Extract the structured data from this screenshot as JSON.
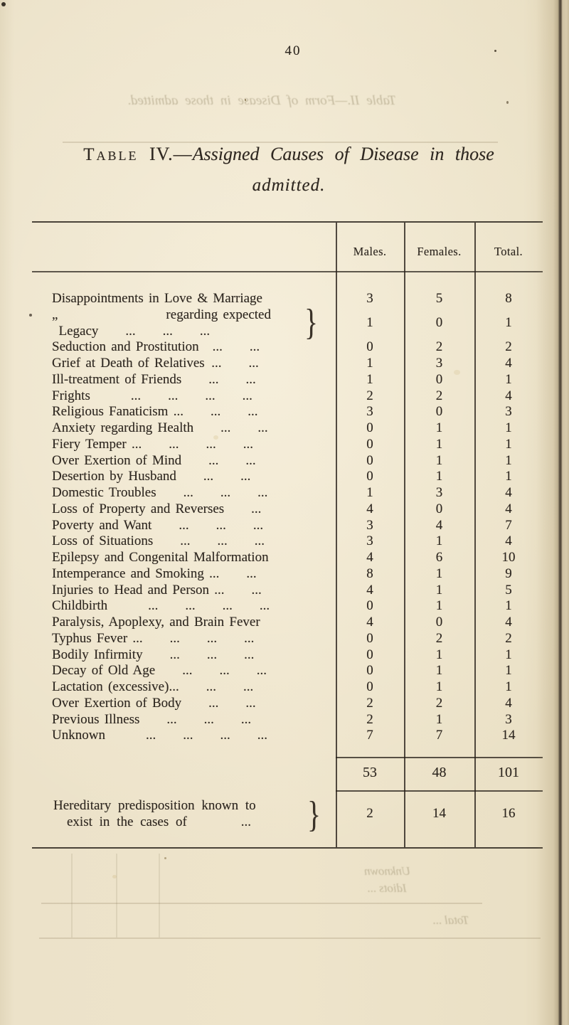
{
  "page": {
    "number": "40"
  },
  "paper_color": "#ece2c9",
  "ink_color": "#2e2720",
  "bleed": {
    "title": "Table II.—Form of Disease in those admitted.",
    "bottom_rows": [
      "Unknown",
      "Idiots ...",
      "Total ..."
    ]
  },
  "title": {
    "caption_word": "Table",
    "numeral": "IV.—",
    "italic_part": "Assigned Causes of Disease in those",
    "line2": "admitted."
  },
  "table": {
    "columns": [
      "Males.",
      "Females.",
      "Total."
    ],
    "rows": [
      {
        "label": "Disappointments in Love & Marriage",
        "males": "3",
        "females": "5",
        "total": "8"
      },
      {
        "lines": [
          "„        regarding expected",
          " Legacy  ...  ...  ..."
        ],
        "brace": "}",
        "males": "1",
        "females": "0",
        "total": "1"
      },
      {
        "label": "Seduction and Prostitution ...  ...",
        "males": "0",
        "females": "2",
        "total": "2"
      },
      {
        "label": "Grief at Death of Relatives ...  ...",
        "males": "1",
        "females": "3",
        "total": "4"
      },
      {
        "label": "Ill-treatment of Friends  ...  ...",
        "males": "1",
        "females": "0",
        "total": "1"
      },
      {
        "label": "Frights   ...  ...  ...  ...",
        "males": "2",
        "females": "2",
        "total": "4"
      },
      {
        "label": "Religious Fanaticism ...  ...  ...",
        "males": "3",
        "females": "0",
        "total": "3"
      },
      {
        "label": "Anxiety regarding Health  ...  ...",
        "males": "0",
        "females": "1",
        "total": "1"
      },
      {
        "label": "Fiery Temper ...  ...  ...  ...",
        "males": "0",
        "females": "1",
        "total": "1"
      },
      {
        "label": "Over Exertion of Mind  ...  ...",
        "males": "0",
        "females": "1",
        "total": "1"
      },
      {
        "label": "Desertion by Husband  ...  ...",
        "males": "0",
        "females": "1",
        "total": "1"
      },
      {
        "label": "Domestic Troubles  ...  ...  ...",
        "males": "1",
        "females": "3",
        "total": "4"
      },
      {
        "label": "Loss of Property and Reverses  ...",
        "males": "4",
        "females": "0",
        "total": "4"
      },
      {
        "label": "Poverty and Want  ...  ...  ...",
        "males": "3",
        "females": "4",
        "total": "7"
      },
      {
        "label": "Loss of Situations  ...  ...  ...",
        "males": "3",
        "females": "1",
        "total": "4"
      },
      {
        "label": "Epilepsy and Congenital Malformation",
        "males": "4",
        "females": "6",
        "total": "10"
      },
      {
        "label": "Intemperance and Smoking ...  ...",
        "males": "8",
        "females": "1",
        "total": "9"
      },
      {
        "label": "Injuries to Head and Person ...  ...",
        "males": "4",
        "females": "1",
        "total": "5"
      },
      {
        "label": "Childbirth   ...  ...  ...  ...",
        "males": "0",
        "females": "1",
        "total": "1"
      },
      {
        "label": "Paralysis, Apoplexy, and Brain Fever",
        "males": "4",
        "females": "0",
        "total": "4"
      },
      {
        "label": "Typhus Fever ...  ...  ...  ...",
        "males": "0",
        "females": "2",
        "total": "2"
      },
      {
        "label": "Bodily Infirmity  ...  ...  ...",
        "males": "0",
        "females": "1",
        "total": "1"
      },
      {
        "label": "Decay of Old Age  ...  ...  ...",
        "males": "0",
        "females": "1",
        "total": "1"
      },
      {
        "label": "Lactation (excessive)...  ...  ...",
        "males": "0",
        "females": "1",
        "total": "1"
      },
      {
        "label": "Over Exertion of Body  ...  ...",
        "males": "2",
        "females": "2",
        "total": "4"
      },
      {
        "label": "Previous Illness  ...  ...  ...",
        "males": "2",
        "females": "1",
        "total": "3"
      },
      {
        "label": "Unknown   ...  ...  ...  ...",
        "males": "7",
        "females": "7",
        "total": "14"
      }
    ],
    "totals": {
      "males": "53",
      "females": "48",
      "total": "101"
    },
    "hereditary": {
      "line1": "Hereditary predisposition known to",
      "line2": " exist in the cases of    ...",
      "brace": "}",
      "males": "2",
      "females": "14",
      "total": "16"
    }
  }
}
